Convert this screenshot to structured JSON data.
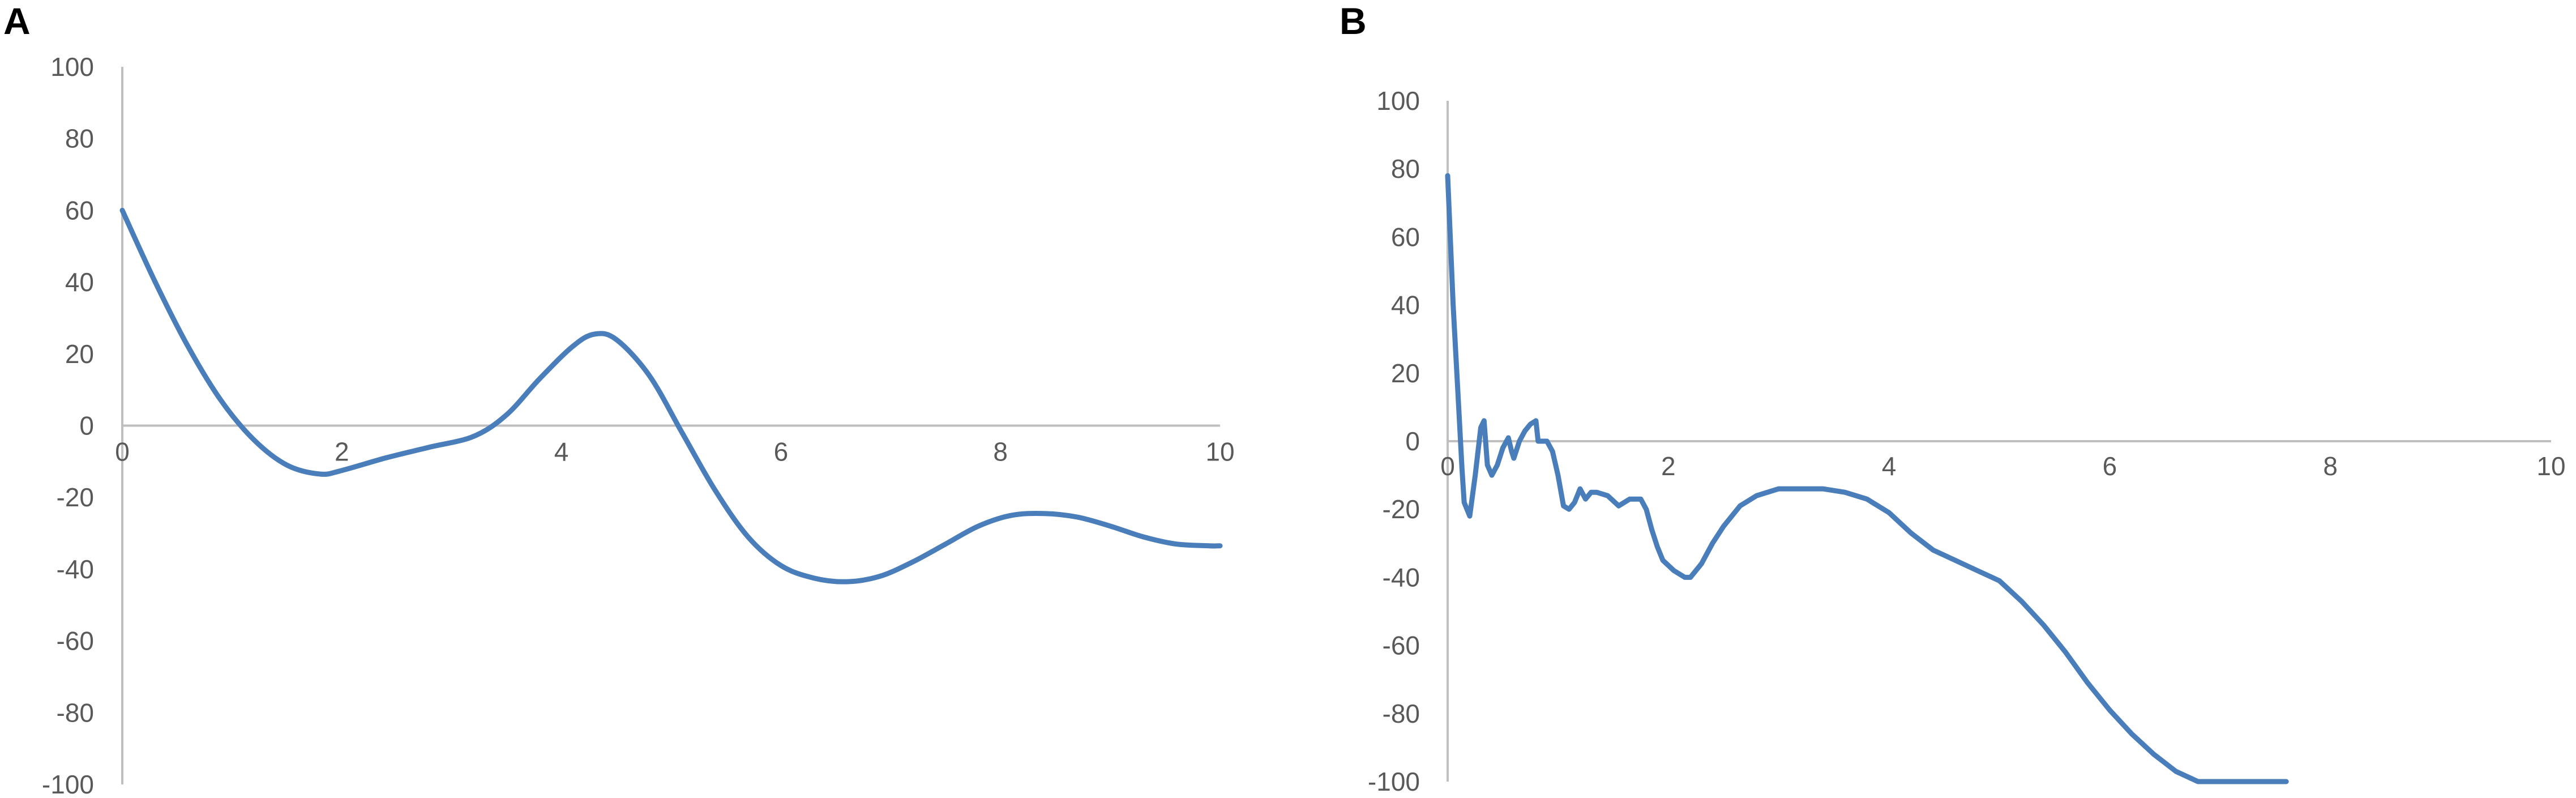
{
  "chart_data": [
    {
      "type": "line",
      "panel_label": "A",
      "xlim": [
        0,
        10
      ],
      "ylim": [
        -100,
        100
      ],
      "x_ticks": [
        0,
        2,
        4,
        6,
        8,
        10
      ],
      "y_ticks": [
        100,
        80,
        60,
        40,
        20,
        0,
        -20,
        -40,
        -60,
        -80,
        -100
      ],
      "grid": false,
      "series": [
        {
          "color": "#4a7ebb",
          "x": [
            0,
            0.3,
            0.6,
            0.9,
            1.2,
            1.5,
            1.8,
            2.0,
            2.4,
            2.8,
            3.2,
            3.5,
            3.8,
            4.1,
            4.3,
            4.5,
            4.8,
            5.1,
            5.4,
            5.7,
            6.0,
            6.3,
            6.6,
            6.9,
            7.2,
            7.5,
            7.8,
            8.1,
            8.4,
            8.7,
            9.0,
            9.3,
            9.6,
            9.9,
            10.0
          ],
          "y": [
            60,
            40,
            22,
            7,
            -4,
            -11,
            -13.5,
            -12.5,
            -9,
            -6,
            -3,
            3,
            13,
            22,
            25.5,
            24,
            14,
            -2,
            -18,
            -31,
            -39,
            -42.5,
            -43.5,
            -42,
            -38,
            -33,
            -28,
            -25,
            -24.5,
            -25.5,
            -28,
            -31,
            -33,
            -33.5,
            -33.5
          ]
        }
      ]
    },
    {
      "type": "line",
      "panel_label": "B",
      "xlim": [
        0,
        10
      ],
      "ylim": [
        -100,
        100
      ],
      "x_ticks": [
        0,
        2,
        4,
        6,
        8,
        10
      ],
      "y_ticks": [
        100,
        80,
        60,
        40,
        20,
        0,
        -20,
        -40,
        -60,
        -80,
        -100
      ],
      "grid": false,
      "series": [
        {
          "color": "#4a7ebb",
          "x": [
            0.0,
            0.05,
            0.1,
            0.13,
            0.15,
            0.2,
            0.25,
            0.3,
            0.33,
            0.36,
            0.4,
            0.45,
            0.5,
            0.55,
            0.58,
            0.6,
            0.65,
            0.7,
            0.75,
            0.8,
            0.82,
            0.85,
            0.9,
            0.95,
            1.0,
            1.05,
            1.1,
            1.15,
            1.2,
            1.25,
            1.3,
            1.35,
            1.45,
            1.55,
            1.6,
            1.65,
            1.75,
            1.8,
            1.85,
            1.9,
            1.95,
            2.05,
            2.15,
            2.2,
            2.25,
            2.3,
            2.4,
            2.5,
            2.65,
            2.8,
            3.0,
            3.2,
            3.4,
            3.6,
            3.8,
            4.0,
            4.2,
            4.4,
            4.6,
            4.8,
            5.0,
            5.2,
            5.4,
            5.6,
            5.8,
            6.0,
            6.2,
            6.4,
            6.6,
            6.8,
            7.0,
            7.2,
            7.4,
            7.6
          ],
          "y": [
            78,
            40,
            10,
            -8,
            -18,
            -22,
            -10,
            4,
            6,
            -7,
            -10,
            -7,
            -2,
            1,
            -3,
            -5,
            0,
            3,
            5,
            6,
            0,
            0,
            0,
            -3,
            -10,
            -19,
            -20,
            -18,
            -14,
            -17,
            -15,
            -15,
            -16,
            -19,
            -18,
            -17,
            -17,
            -20,
            -26,
            -31,
            -35,
            -38,
            -40,
            -40,
            -38,
            -36,
            -30,
            -25,
            -19,
            -16,
            -14,
            -14,
            -14,
            -15,
            -17,
            -21,
            -27,
            -32,
            -35,
            -38,
            -41,
            -47,
            -54,
            -62,
            -71,
            -79,
            -86,
            -92,
            -97,
            -100,
            -100,
            -100,
            -100,
            -100
          ]
        }
      ]
    }
  ]
}
